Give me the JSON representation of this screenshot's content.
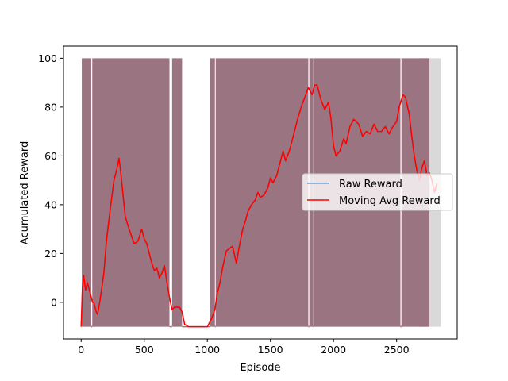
{
  "chart_data": {
    "type": "line",
    "title": "",
    "xlabel": "Episode",
    "ylabel": "Acumulated Reward",
    "xlim": [
      -140,
      2980
    ],
    "ylim": [
      -15,
      105
    ],
    "x_ticks": [
      0,
      500,
      1000,
      1500,
      2000,
      2500
    ],
    "y_ticks": [
      0,
      20,
      40,
      60,
      80,
      100
    ],
    "grid": false,
    "legend_position": "center-right",
    "colors": {
      "raw": "#6fa8dc",
      "moving_avg": "#ff0000",
      "fill_dense": "#9b7482",
      "fill_tail": "#bfbfbf"
    },
    "series": [
      {
        "name": "Raw Reward",
        "kind": "raw",
        "values_oscillate_between": [
          -10,
          100
        ],
        "dense_segments": [
          [
            5,
            700
          ],
          [
            720,
            800
          ],
          [
            1020,
            2760
          ]
        ],
        "fading_tail_segments": [
          [
            2680,
            2700
          ],
          [
            2700,
            2720
          ],
          [
            2720,
            2740
          ],
          [
            2740,
            2760
          ],
          [
            2760,
            2790
          ],
          [
            2790,
            2820
          ],
          [
            2820,
            2850
          ]
        ],
        "low_value_gaps": [
          [
            80,
            88
          ],
          [
            700,
            720
          ],
          [
            800,
            1020
          ],
          [
            1060,
            1066
          ],
          [
            1800,
            1808
          ],
          [
            1840,
            1846
          ],
          [
            2530,
            2538
          ]
        ]
      },
      {
        "name": "Moving Avg Reward",
        "kind": "moving_avg",
        "x": [
          0,
          10,
          20,
          35,
          50,
          70,
          90,
          100,
          110,
          120,
          130,
          150,
          180,
          200,
          230,
          260,
          280,
          300,
          310,
          330,
          350,
          380,
          420,
          450,
          480,
          500,
          520,
          540,
          560,
          580,
          600,
          620,
          640,
          660,
          680,
          700,
          720,
          740,
          760,
          780,
          800,
          820,
          850,
          900,
          950,
          1000,
          1030,
          1060,
          1080,
          1100,
          1120,
          1150,
          1200,
          1230,
          1250,
          1280,
          1300,
          1320,
          1350,
          1380,
          1400,
          1420,
          1450,
          1480,
          1500,
          1520,
          1550,
          1580,
          1600,
          1620,
          1650,
          1680,
          1700,
          1720,
          1750,
          1780,
          1800,
          1830,
          1850,
          1870,
          1900,
          1930,
          1960,
          1980,
          2000,
          2020,
          2050,
          2080,
          2100,
          2130,
          2160,
          2200,
          2230,
          2260,
          2290,
          2320,
          2350,
          2380,
          2410,
          2440,
          2470,
          2500,
          2520,
          2550,
          2570,
          2600,
          2620,
          2640,
          2660,
          2680,
          2700,
          2720,
          2740,
          2760,
          2780,
          2800,
          2820
        ],
        "y": [
          -10,
          6,
          11,
          5,
          8,
          4,
          0,
          0,
          -2,
          -4,
          -5,
          1,
          12,
          25,
          38,
          50,
          54,
          59,
          55,
          45,
          35,
          30,
          24,
          25,
          30,
          26,
          24,
          20,
          16,
          13,
          14,
          10,
          12,
          15,
          8,
          2,
          -3,
          -2,
          -2,
          -2,
          -4,
          -9,
          -10,
          -10,
          -10,
          -10,
          -7,
          -3,
          4,
          8,
          14,
          21,
          23,
          16,
          22,
          30,
          33,
          37,
          40,
          42,
          45,
          43,
          44,
          47,
          51,
          49,
          52,
          58,
          62,
          58,
          62,
          68,
          72,
          76,
          81,
          85,
          88,
          85,
          89,
          89,
          83,
          79,
          82,
          75,
          64,
          60,
          62,
          67,
          65,
          72,
          75,
          73,
          68,
          70,
          69,
          73,
          70,
          70,
          72,
          69,
          72,
          74,
          80,
          85,
          84,
          77,
          68,
          60,
          54,
          50,
          55,
          58,
          52,
          53,
          50,
          45,
          49
        ]
      }
    ]
  }
}
